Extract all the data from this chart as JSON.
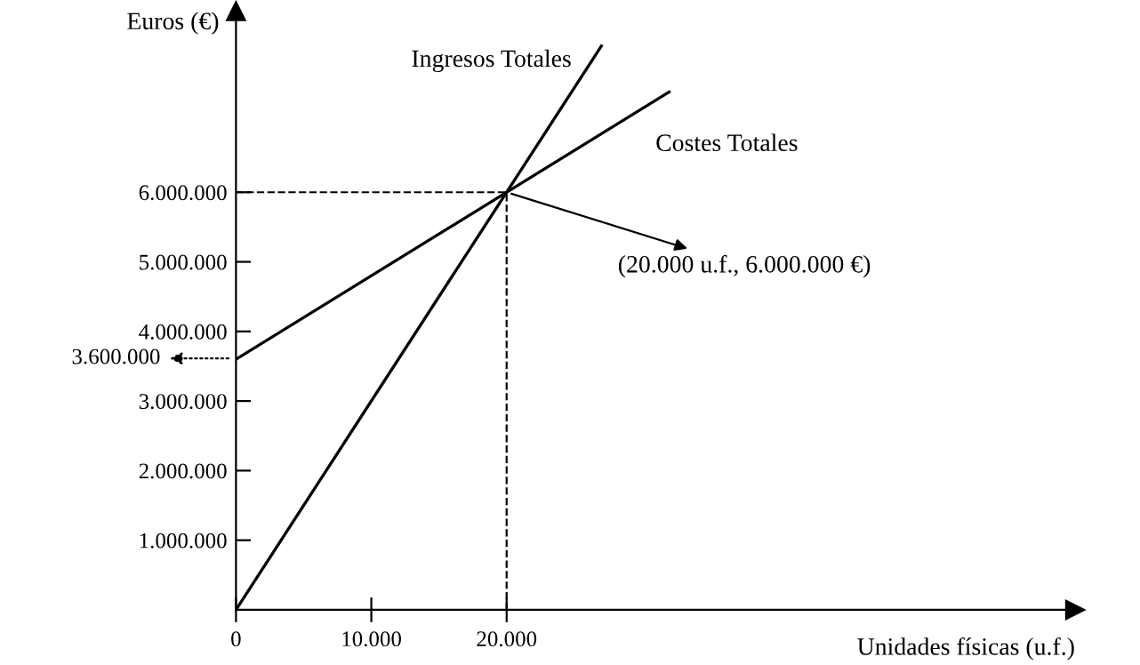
{
  "chart_data": {
    "type": "line",
    "xlabel": "Unidades físicas (u.f.)",
    "ylabel": "Euros (€)",
    "series": [
      {
        "name": "Ingresos Totales",
        "color": "#000000",
        "x": [
          0,
          27000
        ],
        "values": [
          0,
          8100000
        ]
      },
      {
        "name": "Costes Totales",
        "color": "#000000",
        "x": [
          0,
          32000
        ],
        "values": [
          3600000,
          7440000
        ]
      }
    ],
    "xlim": [
      0,
      62000
    ],
    "ylim": [
      0,
      8600000
    ],
    "xticks": [
      0,
      {
        "value": 10000,
        "label": "10.000"
      },
      {
        "value": 20000,
        "label": "20.000"
      }
    ],
    "yticks": [
      {
        "value": 1000000,
        "label": "1.000.000"
      },
      {
        "value": 2000000,
        "label": "2.000.000"
      },
      {
        "value": 3000000,
        "label": "3.000.000"
      },
      {
        "value": 4000000,
        "label": "4.000.000"
      },
      {
        "value": 5000000,
        "label": "5.000.000"
      },
      {
        "value": 6000000,
        "label": "6.000.000"
      }
    ],
    "ref_lines": [
      {
        "axis": "y",
        "value": 6000000,
        "line_style": "dashed",
        "color": "#000000"
      },
      {
        "axis": "x",
        "value": 20000,
        "line_style": "dashed",
        "color": "#000000"
      }
    ],
    "annotations": [
      {
        "text": "(20.000 u.f., 6.000.000 €)",
        "x": 20000,
        "y": 6000000
      },
      "3.600.000"
    ],
    "grid": false,
    "legend": false,
    "marker": "none",
    "line_style": "solid"
  }
}
